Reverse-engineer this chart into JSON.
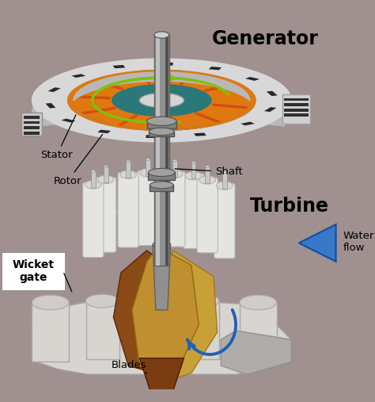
{
  "background_color": "#a09090",
  "title_generator": "Generator",
  "title_turbine": "Turbine",
  "labels": {
    "stator": "Stator",
    "rotor": "Rotor",
    "shaft": "Shaft",
    "wicket_gate": "Wicket\ngate",
    "blades": "Blades",
    "water_flow": "Water\nflow"
  },
  "colors": {
    "bg": "#a09090",
    "teal": "#2a7878",
    "orange": "#e07810",
    "orange_spoke": "#d05010",
    "white_hub": "#e8e8e8",
    "stator_white": "#d8d8d8",
    "stator_dark": "#383838",
    "shaft_mid": "#909090",
    "shaft_light": "#c0c0c0",
    "shaft_dark": "#606060",
    "blade_gold": "#c8a040",
    "blade_gold2": "#e0b860",
    "blade_brown": "#7a4010",
    "blade_tan": "#b08030",
    "blade_dark": "#5a3008",
    "turbine_light": "#d8d4d0",
    "turbine_mid": "#c0bcb8",
    "gate_white": "#e4e4e0",
    "gate_gray": "#b8b4b0",
    "water_blue": "#3878c8",
    "blue_arrow": "#2060b8",
    "arrow_green": "#80c010"
  },
  "fig_width": 4.74,
  "fig_height": 5.07,
  "dpi": 100
}
